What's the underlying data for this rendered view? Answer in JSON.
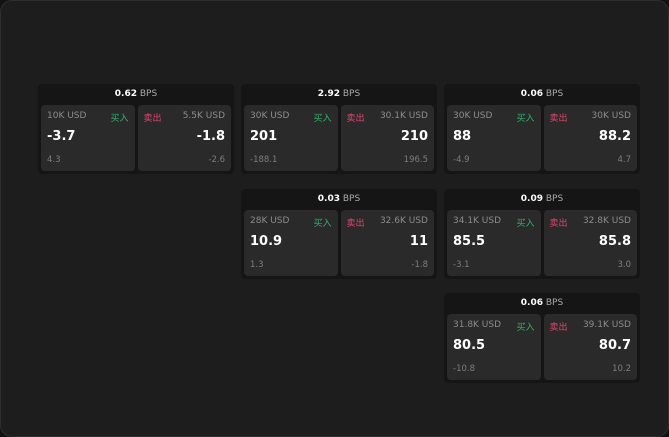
{
  "labels": {
    "buy": "买入",
    "sell": "卖出",
    "unit": "BPS"
  },
  "colors": {
    "buy": "#2fb36a",
    "sell": "#e0466d"
  },
  "cards": [
    {
      "spread": "0.62",
      "bid": {
        "size": "10K USD",
        "price": "-3.7",
        "change": "4.3"
      },
      "ask": {
        "size": "5.5K USD",
        "price": "-1.8",
        "change": "-2.6"
      }
    },
    {
      "spread": "2.92",
      "bid": {
        "size": "30K USD",
        "price": "201",
        "change": "-188.1"
      },
      "ask": {
        "size": "30.1K USD",
        "price": "210",
        "change": "196.5"
      }
    },
    {
      "spread": "0.06",
      "bid": {
        "size": "30K USD",
        "price": "88",
        "change": "-4.9"
      },
      "ask": {
        "size": "30K USD",
        "price": "88.2",
        "change": "4.7"
      }
    },
    {
      "spread": "0.03",
      "bid": {
        "size": "28K USD",
        "price": "10.9",
        "change": "1.3"
      },
      "ask": {
        "size": "32.6K USD",
        "price": "11",
        "change": "-1.8"
      }
    },
    {
      "spread": "0.09",
      "bid": {
        "size": "34.1K USD",
        "price": "85.5",
        "change": "-3.1"
      },
      "ask": {
        "size": "32.8K USD",
        "price": "85.8",
        "change": "3.0"
      }
    },
    {
      "spread": "0.06",
      "bid": {
        "size": "31.8K USD",
        "price": "80.5",
        "change": "-10.8"
      },
      "ask": {
        "size": "39.1K USD",
        "price": "80.7",
        "change": "10.2"
      }
    }
  ]
}
